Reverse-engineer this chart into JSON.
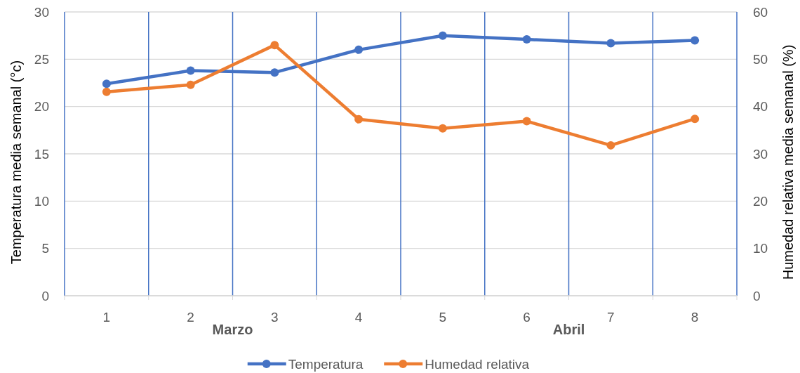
{
  "chart_data": {
    "type": "line",
    "categories": [
      "1",
      "2",
      "3",
      "4",
      "5",
      "6",
      "7",
      "8"
    ],
    "series": [
      {
        "name": "Temperatura",
        "color": "#4472c4",
        "values": [
          22.4,
          23.8,
          23.6,
          26.0,
          27.5,
          27.1,
          26.7,
          27.0
        ]
      },
      {
        "name": "Humedad relativa",
        "color": "#ed7d31",
        "axis": "y2",
        "values": [
          43.1,
          44.6,
          53.0,
          37.3,
          35.4,
          36.9,
          31.8,
          37.4
        ]
      }
    ],
    "ylabel": "Temperatura media semanal (°c)",
    "y2label": "Humedad relativa media semanal (%)",
    "ylim": [
      0,
      30
    ],
    "yticks": [
      0,
      5,
      10,
      15,
      20,
      25,
      30
    ],
    "y2lim": [
      0,
      60
    ],
    "y2ticks": [
      0,
      10,
      20,
      30,
      40,
      50,
      60
    ],
    "annotations": [
      "Marzo",
      "Abril"
    ],
    "grid": true,
    "legend": "bottom",
    "marker": "circle",
    "line_style": "solid"
  }
}
